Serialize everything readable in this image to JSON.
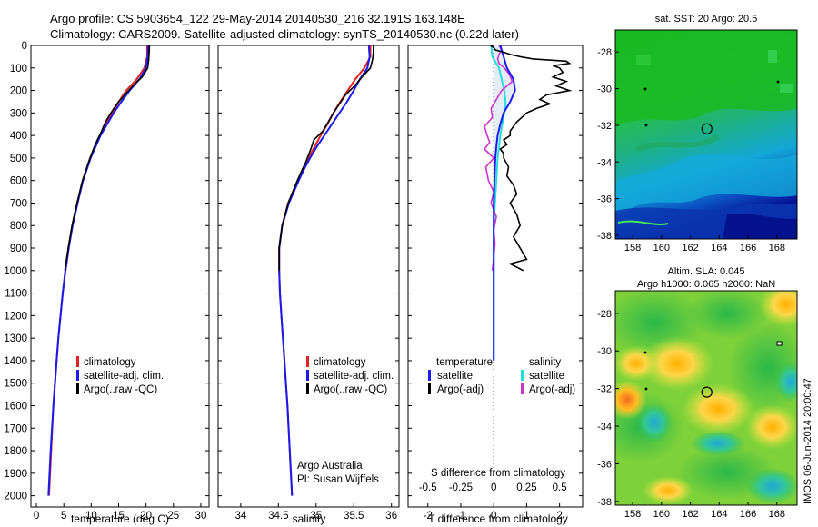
{
  "title_line1": "Argo profile: CS 5903654_122 29-May-2014 20140530_216 32.191S 163.148E",
  "title_line2": "Climatology: CARS2009. Satellite-adjusted climatology: synTS_20140530.nc (0.22d later)",
  "side_stamp": "IMOS 06-Jun-2014 20:00:47",
  "colors": {
    "climatology": "#dd2222",
    "satellite": "#1a1aee",
    "argo": "#000000",
    "sal_satellite": "#22dddd",
    "sal_argo": "#cc33cc",
    "band": "#e4ecf7"
  },
  "chart_data": [
    {
      "type": "line",
      "panel": "temperature",
      "xlabel": "temperature (deg C)",
      "xlim": [
        -1,
        31.5
      ],
      "ylim": [
        0,
        2050
      ],
      "x_ticks": [
        0,
        5,
        10,
        15,
        20,
        25,
        30
      ],
      "y_ticks": [
        0,
        100,
        200,
        300,
        400,
        500,
        600,
        700,
        800,
        900,
        1000,
        1100,
        1200,
        1300,
        1400,
        1500,
        1600,
        1700,
        1800,
        1900,
        2000
      ],
      "legend": [
        "climatology",
        "satellite-adj. clim.",
        "Argo(..raw -QC)"
      ],
      "series": [
        {
          "name": "climatology",
          "depth": [
            0,
            50,
            100,
            150,
            200,
            250,
            300,
            350,
            400,
            500,
            600,
            700,
            800,
            900,
            1000,
            1100,
            1200,
            1300,
            1400,
            1600,
            1800,
            2000
          ],
          "values": [
            20.2,
            20.2,
            19.7,
            18.3,
            16.4,
            15.0,
            13.8,
            12.7,
            11.6,
            9.8,
            8.5,
            7.5,
            6.6,
            5.9,
            5.3,
            4.8,
            4.4,
            4.0,
            3.7,
            3.1,
            2.7,
            2.3
          ]
        },
        {
          "name": "satellite-adj. clim.",
          "depth": [
            0,
            50,
            100,
            150,
            200,
            250,
            300,
            350,
            400,
            500,
            600,
            700,
            800,
            900,
            1000,
            1100,
            1200,
            1300,
            1400,
            1600,
            1800,
            2000
          ],
          "values": [
            20.4,
            20.3,
            20.0,
            18.8,
            17.0,
            15.5,
            14.1,
            12.9,
            11.7,
            9.9,
            8.5,
            7.5,
            6.6,
            5.9,
            5.3,
            4.8,
            4.4,
            4.0,
            3.7,
            3.1,
            2.6,
            2.2
          ]
        },
        {
          "name": "Argo(..raw -QC)",
          "depth": [
            0,
            20,
            60,
            100,
            140,
            180,
            220,
            260,
            300,
            340,
            380,
            420,
            460,
            520,
            600,
            700,
            800,
            900,
            1000
          ],
          "values": [
            20.6,
            20.6,
            20.5,
            20.3,
            19.3,
            17.6,
            16.1,
            14.7,
            13.6,
            12.6,
            11.9,
            11.1,
            10.4,
            9.5,
            8.4,
            7.4,
            6.5,
            5.8,
            5.2
          ]
        }
      ]
    },
    {
      "type": "line",
      "panel": "salinity",
      "xlabel": "salinity",
      "xlim": [
        33.7,
        36.1
      ],
      "ylim": [
        0,
        2050
      ],
      "x_ticks": [
        34,
        34.5,
        35,
        35.5,
        36
      ],
      "legend": [
        "climatology",
        "satellite-adj. clim.",
        "Argo(..raw -QC)"
      ],
      "annotation": [
        "Argo Australia",
        "PI: Susan Wijffels"
      ],
      "series": [
        {
          "name": "climatology",
          "depth": [
            0,
            50,
            100,
            150,
            200,
            250,
            300,
            350,
            400,
            450,
            500,
            550,
            600,
            700,
            800,
            900,
            1000,
            1100,
            1200,
            1300,
            1400,
            1500,
            1600,
            1800,
            2000
          ],
          "values": [
            35.72,
            35.72,
            35.64,
            35.52,
            35.42,
            35.32,
            35.23,
            35.15,
            35.06,
            34.98,
            34.9,
            34.82,
            34.76,
            34.63,
            34.55,
            34.51,
            34.51,
            34.52,
            34.54,
            34.56,
            34.58,
            34.6,
            34.62,
            34.65,
            34.68
          ]
        },
        {
          "name": "satellite-adj. clim.",
          "depth": [
            0,
            50,
            100,
            150,
            200,
            250,
            300,
            350,
            400,
            450,
            500,
            550,
            600,
            700,
            800,
            900,
            1000,
            1100,
            1200,
            1300,
            1400,
            1500,
            1600,
            1800,
            2000
          ],
          "values": [
            35.7,
            35.71,
            35.68,
            35.58,
            35.5,
            35.41,
            35.31,
            35.21,
            35.11,
            35.01,
            34.92,
            34.84,
            34.77,
            34.64,
            34.55,
            34.51,
            34.51,
            34.52,
            34.54,
            34.56,
            34.58,
            34.6,
            34.62,
            34.65,
            34.68
          ]
        },
        {
          "name": "Argo(..raw -QC)",
          "depth": [
            0,
            30,
            60,
            100,
            140,
            180,
            220,
            260,
            300,
            340,
            380,
            420,
            460,
            520,
            600,
            700,
            800,
            900,
            1000
          ],
          "values": [
            35.76,
            35.76,
            35.75,
            35.72,
            35.61,
            35.51,
            35.39,
            35.31,
            35.23,
            35.16,
            35.09,
            34.97,
            34.93,
            34.86,
            34.75,
            34.63,
            34.55,
            34.51,
            34.51
          ]
        }
      ]
    },
    {
      "type": "line",
      "panel": "difference",
      "xlabel": "T difference from climatology",
      "x2label": "S difference from climatology",
      "xlim": [
        -2.6,
        2.7
      ],
      "x2lim": [
        -0.65,
        0.675
      ],
      "ylim": [
        0,
        2050
      ],
      "x_ticks": [
        -2,
        -1,
        0,
        1,
        2
      ],
      "x2_ticks": [
        -0.5,
        -0.25,
        0,
        0.25,
        0.5
      ],
      "x2_tick_labels": [
        "-0.5",
        "-0.25",
        "0",
        "0.25",
        "0.5"
      ],
      "legend_title_left": "temperature",
      "legend_title_right": "salinity",
      "legend": [
        "satellite",
        "Argo(-adj)",
        "satellite",
        "Argo(-adj)"
      ],
      "series": [
        {
          "name": "T satellite",
          "axis": "T",
          "depth": [
            0,
            50,
            100,
            150,
            200,
            250,
            300,
            350,
            400,
            450,
            500,
            600,
            700,
            800,
            900,
            1000,
            1200,
            1400
          ],
          "values": [
            0.2,
            0.3,
            0.4,
            0.6,
            0.65,
            0.5,
            0.3,
            0.2,
            0.12,
            0.08,
            0.05,
            0.02,
            0.0,
            0.0,
            0.0,
            0.0,
            0.0,
            0.0
          ]
        },
        {
          "name": "T Argo(-adj)",
          "axis": "T",
          "depth": [
            0,
            10,
            20,
            30,
            40,
            50,
            60,
            70,
            80,
            90,
            100,
            120,
            140,
            160,
            180,
            200,
            220,
            240,
            260,
            280,
            300,
            320,
            340,
            360,
            380,
            400,
            420,
            440,
            460,
            480,
            500,
            540,
            580,
            620,
            660,
            700,
            750,
            800,
            850,
            900,
            950,
            970,
            1000
          ],
          "values": [
            -0.1,
            0.0,
            0.05,
            0.3,
            0.5,
            0.8,
            1.2,
            2.2,
            2.3,
            1.8,
            2.0,
            2.1,
            1.8,
            2.2,
            1.9,
            2.3,
            1.6,
            1.4,
            1.7,
            1.3,
            1.0,
            0.85,
            0.7,
            0.6,
            0.5,
            0.5,
            0.3,
            0.4,
            0.2,
            0.3,
            0.3,
            0.45,
            0.4,
            0.6,
            0.7,
            0.5,
            0.7,
            0.8,
            0.6,
            0.8,
            1.0,
            0.5,
            0.9
          ]
        },
        {
          "name": "S satellite",
          "axis": "S",
          "depth": [
            0,
            50,
            100,
            150,
            200,
            250,
            300,
            400,
            500,
            600,
            700,
            800,
            900,
            1000,
            1100,
            1200,
            1300,
            1400
          ],
          "values": [
            -0.02,
            -0.01,
            0.04,
            0.06,
            0.08,
            0.09,
            0.08,
            0.05,
            0.03,
            0.02,
            0.01,
            0.0,
            0.0,
            0.0,
            0.0,
            0.0,
            0.0,
            0.0
          ]
        },
        {
          "name": "S Argo(-adj)",
          "axis": "S",
          "depth": [
            0,
            20,
            40,
            60,
            80,
            100,
            130,
            160,
            200,
            240,
            280,
            320,
            360,
            400,
            430,
            460,
            500,
            540,
            600,
            650,
            700,
            760,
            820,
            880,
            940,
            1000
          ],
          "values": [
            0.04,
            0.06,
            0.04,
            0.03,
            0.04,
            0.08,
            0.12,
            0.14,
            0.06,
            0.02,
            -0.02,
            -0.01,
            -0.07,
            -0.05,
            -0.03,
            -0.07,
            0.0,
            -0.06,
            -0.04,
            0.0,
            -0.02,
            0.02,
            0.0,
            0.01,
            0.0,
            -0.01
          ]
        }
      ]
    },
    {
      "type": "heatmap",
      "panel": "sst-map",
      "title": "sat. SST: 20 Argo: 20.5",
      "x_ticks": [
        158,
        160,
        162,
        164,
        166,
        168
      ],
      "y_ticks": [
        -28,
        -30,
        -32,
        -34,
        -36,
        -38
      ],
      "xlim": [
        156.8,
        169.4
      ],
      "ylim": [
        -38.2,
        -26.8
      ],
      "argo_position": [
        163.148,
        -32.191
      ]
    },
    {
      "type": "heatmap",
      "panel": "sla-map",
      "title_line1": "Altim. SLA: 0.045",
      "title_line2": "Argo h1000: 0.065 h2000: NaN",
      "x_ticks": [
        158,
        160,
        162,
        164,
        166,
        168
      ],
      "y_ticks": [
        -28,
        -30,
        -32,
        -34,
        -36,
        -38
      ],
      "xlim": [
        156.8,
        169.4
      ],
      "ylim": [
        -38.2,
        -26.8
      ],
      "argo_position": [
        163.148,
        -32.191
      ]
    }
  ]
}
